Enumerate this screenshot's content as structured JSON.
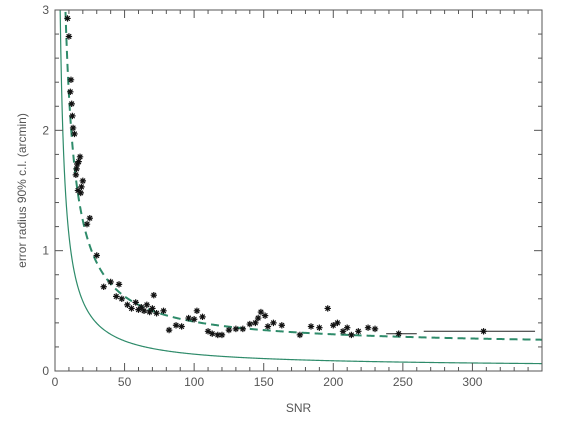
{
  "chart_data": {
    "type": "scatter",
    "title": "",
    "xlabel": "SNR",
    "ylabel": "error radius 90% c.l. (arcmin)",
    "xlim": [
      0,
      350
    ],
    "ylim": [
      0,
      3
    ],
    "xticks": [
      0,
      50,
      100,
      150,
      200,
      250,
      300
    ],
    "yticks": [
      0,
      1,
      2,
      3
    ],
    "xtick_labels": [
      "0",
      "50",
      "100",
      "150",
      "200",
      "250",
      "300"
    ],
    "ytick_labels": [
      "0",
      "1",
      "2",
      "3"
    ],
    "grid": false,
    "colors": {
      "curve": "#2e8b6a",
      "points": "#111111",
      "axes": "#555555"
    },
    "series": [
      {
        "kind": "points",
        "marker": "asterisk",
        "points": [
          [
            9,
            2.93
          ],
          [
            10,
            2.78
          ],
          [
            11,
            2.32
          ],
          [
            11.5,
            2.42
          ],
          [
            12,
            2.22
          ],
          [
            12.5,
            2.12
          ],
          [
            13,
            2.02
          ],
          [
            14,
            1.97
          ],
          [
            15,
            1.63
          ],
          [
            15.5,
            1.68
          ],
          [
            16,
            1.72
          ],
          [
            16.5,
            1.5
          ],
          [
            17,
            1.74
          ],
          [
            18,
            1.78
          ],
          [
            18.5,
            1.48
          ],
          [
            19,
            1.53
          ],
          [
            20,
            1.58
          ],
          [
            23,
            1.22
          ],
          [
            25,
            1.27
          ],
          [
            30,
            0.96
          ],
          [
            35,
            0.7
          ],
          [
            40,
            0.74
          ],
          [
            44,
            0.62
          ],
          [
            46,
            0.72
          ],
          [
            48,
            0.6
          ],
          [
            52,
            0.55
          ],
          [
            55,
            0.52
          ],
          [
            58,
            0.57
          ],
          [
            60,
            0.51
          ],
          [
            62,
            0.53
          ],
          [
            64,
            0.5
          ],
          [
            66,
            0.55
          ],
          [
            68,
            0.49
          ],
          [
            70,
            0.52
          ],
          [
            71,
            0.63
          ],
          [
            73,
            0.48
          ],
          [
            78,
            0.5
          ],
          [
            82,
            0.34
          ],
          [
            87,
            0.38
          ],
          [
            91,
            0.37
          ],
          [
            96,
            0.44
          ],
          [
            100,
            0.43
          ],
          [
            102,
            0.5
          ],
          [
            106,
            0.45
          ],
          [
            110,
            0.33
          ],
          [
            113,
            0.31
          ],
          [
            117,
            0.3
          ],
          [
            120,
            0.3
          ],
          [
            125,
            0.34
          ],
          [
            130,
            0.35
          ],
          [
            135,
            0.35
          ],
          [
            140,
            0.39
          ],
          [
            144,
            0.4
          ],
          [
            146,
            0.44
          ],
          [
            148,
            0.49
          ],
          [
            151,
            0.46
          ],
          [
            153,
            0.37
          ],
          [
            157,
            0.4
          ],
          [
            163,
            0.38
          ],
          [
            176,
            0.3
          ],
          [
            184,
            0.37
          ],
          [
            190,
            0.36
          ],
          [
            196,
            0.52
          ],
          [
            200,
            0.38
          ],
          [
            203,
            0.4
          ],
          [
            207,
            0.33
          ],
          [
            210,
            0.36
          ],
          [
            213,
            0.3
          ],
          [
            218,
            0.33
          ],
          [
            225,
            0.36
          ],
          [
            230,
            0.35
          ],
          [
            247,
            0.31
          ],
          [
            308,
            0.33
          ]
        ]
      },
      {
        "kind": "error_bars_x",
        "bars": [
          {
            "y": 0.33,
            "x0": 265,
            "x1": 345
          },
          {
            "y": 0.31,
            "x0": 238,
            "x1": 260
          }
        ]
      },
      {
        "kind": "curve",
        "style": "dashed",
        "equation": "y = 0.2 + 21 / SNR",
        "x_start": 7
      },
      {
        "kind": "curve",
        "style": "solid",
        "equation": "y = 0.03 + 11 / SNR",
        "x_start": 3.7
      }
    ]
  }
}
